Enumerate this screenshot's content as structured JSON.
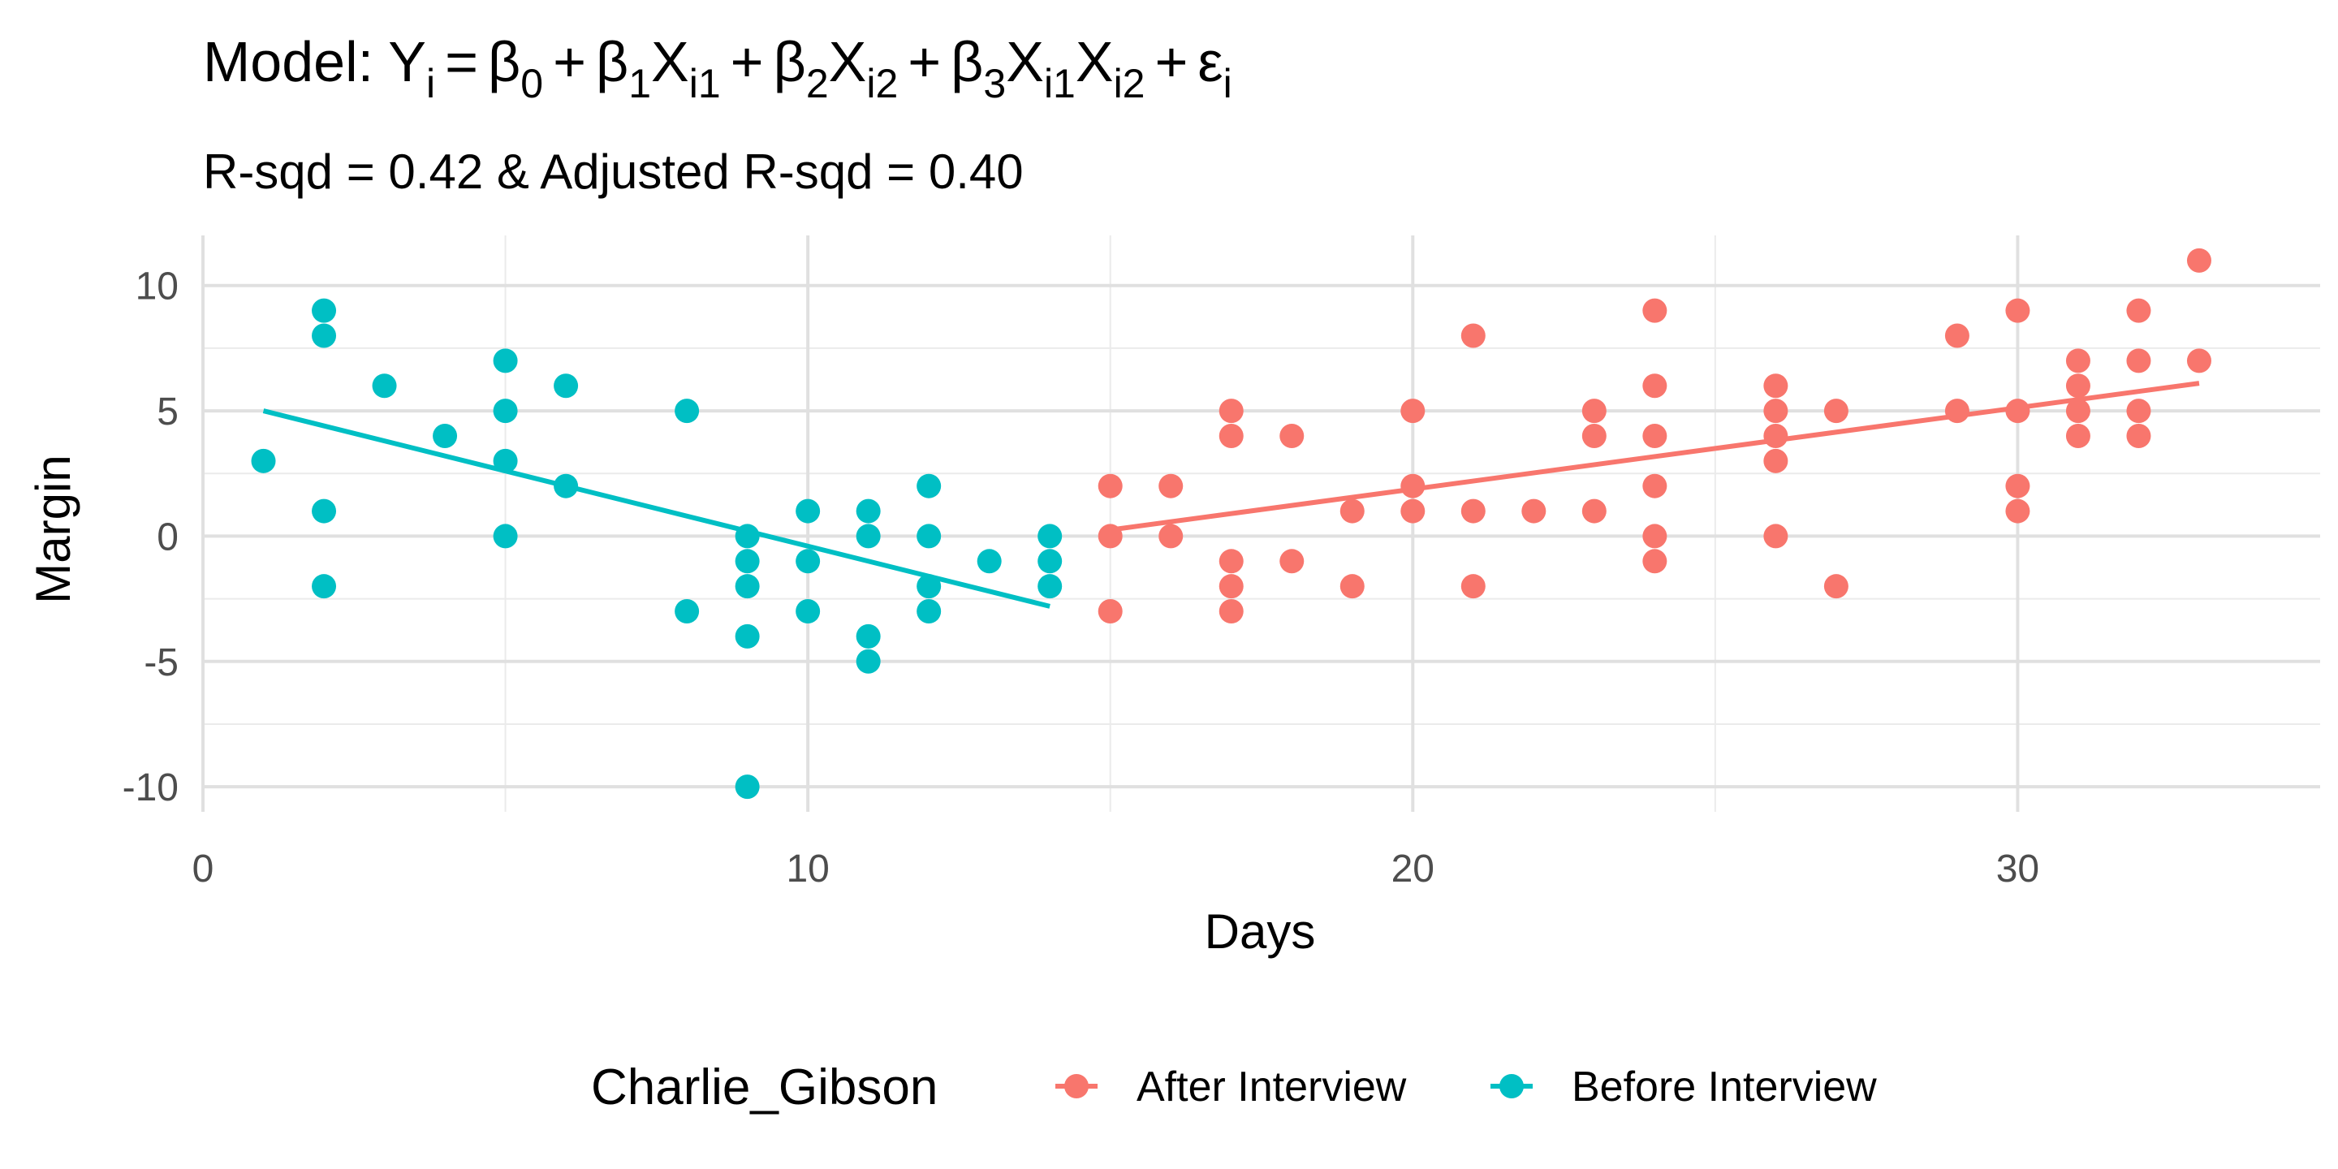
{
  "chart_data": {
    "type": "scatter",
    "title": {
      "prefix": "Model: ",
      "Y": "Y",
      "i": "i",
      "beta": "β",
      "zero": "0",
      "one": "1",
      "two": "2",
      "three": "3",
      "X": "X",
      "i1": "i1",
      "i2": "i2",
      "plus": "+",
      "equals": "=",
      "eps": "ε"
    },
    "subtitle": "R-sqd = 0.42 & Adjusted R-sqd = 0.40",
    "xlabel": "Days",
    "ylabel": "Margin",
    "xlim": [
      0,
      35
    ],
    "ylim": [
      -11,
      12
    ],
    "x_ticks": [
      0,
      10,
      20,
      30
    ],
    "x_tick_labels": [
      "0",
      "10",
      "20",
      "30"
    ],
    "y_ticks": [
      10,
      5,
      0,
      -5,
      -10
    ],
    "y_tick_labels": [
      "10",
      "5",
      "0",
      "-5",
      "-10"
    ],
    "grid": true,
    "legend": {
      "title": "Charlie_Gibson",
      "position": "bottom",
      "entries": [
        "After Interview",
        "Before Interview"
      ]
    },
    "series": [
      {
        "name": "After Interview",
        "color": "#F8766D",
        "points": [
          [
            15,
            2
          ],
          [
            15,
            0
          ],
          [
            15,
            -3
          ],
          [
            16,
            2
          ],
          [
            16,
            0
          ],
          [
            17,
            5
          ],
          [
            17,
            4
          ],
          [
            17,
            -1
          ],
          [
            17,
            -2
          ],
          [
            17,
            -3
          ],
          [
            18,
            4
          ],
          [
            18,
            -1
          ],
          [
            19,
            1
          ],
          [
            19,
            -2
          ],
          [
            20,
            5
          ],
          [
            20,
            2
          ],
          [
            20,
            1
          ],
          [
            21,
            8
          ],
          [
            21,
            1
          ],
          [
            21,
            -2
          ],
          [
            22,
            1
          ],
          [
            23,
            5
          ],
          [
            23,
            4
          ],
          [
            23,
            1
          ],
          [
            24,
            9
          ],
          [
            24,
            6
          ],
          [
            24,
            4
          ],
          [
            24,
            2
          ],
          [
            24,
            0
          ],
          [
            24,
            -1
          ],
          [
            26,
            6
          ],
          [
            26,
            5
          ],
          [
            26,
            4
          ],
          [
            26,
            3
          ],
          [
            26,
            0
          ],
          [
            27,
            5
          ],
          [
            27,
            -2
          ],
          [
            29,
            8
          ],
          [
            29,
            5
          ],
          [
            30,
            9
          ],
          [
            30,
            5
          ],
          [
            30,
            2
          ],
          [
            30,
            1
          ],
          [
            31,
            7
          ],
          [
            31,
            6
          ],
          [
            31,
            5
          ],
          [
            31,
            4
          ],
          [
            32,
            9
          ],
          [
            32,
            7
          ],
          [
            32,
            5
          ],
          [
            32,
            4
          ],
          [
            33,
            11
          ],
          [
            33,
            7
          ]
        ],
        "fit": [
          [
            15,
            0.25
          ],
          [
            33,
            6.1
          ]
        ]
      },
      {
        "name": "Before Interview",
        "color": "#00BFC4",
        "points": [
          [
            1,
            3
          ],
          [
            2,
            9
          ],
          [
            2,
            8
          ],
          [
            2,
            1
          ],
          [
            2,
            -2
          ],
          [
            3,
            6
          ],
          [
            4,
            4
          ],
          [
            5,
            7
          ],
          [
            5,
            5
          ],
          [
            5,
            3
          ],
          [
            5,
            0
          ],
          [
            6,
            6
          ],
          [
            6,
            2
          ],
          [
            8,
            5
          ],
          [
            8,
            -3
          ],
          [
            9,
            0
          ],
          [
            9,
            -1
          ],
          [
            9,
            -2
          ],
          [
            9,
            -4
          ],
          [
            9,
            -10
          ],
          [
            10,
            1
          ],
          [
            10,
            -1
          ],
          [
            10,
            -3
          ],
          [
            11,
            1
          ],
          [
            11,
            0
          ],
          [
            11,
            -4
          ],
          [
            11,
            -5
          ],
          [
            12,
            2
          ],
          [
            12,
            0
          ],
          [
            12,
            -2
          ],
          [
            12,
            -3
          ],
          [
            13,
            -1
          ],
          [
            14,
            0
          ],
          [
            14,
            -1
          ],
          [
            14,
            -2
          ]
        ],
        "fit": [
          [
            1,
            5.0
          ],
          [
            14,
            -2.8
          ]
        ]
      }
    ]
  }
}
